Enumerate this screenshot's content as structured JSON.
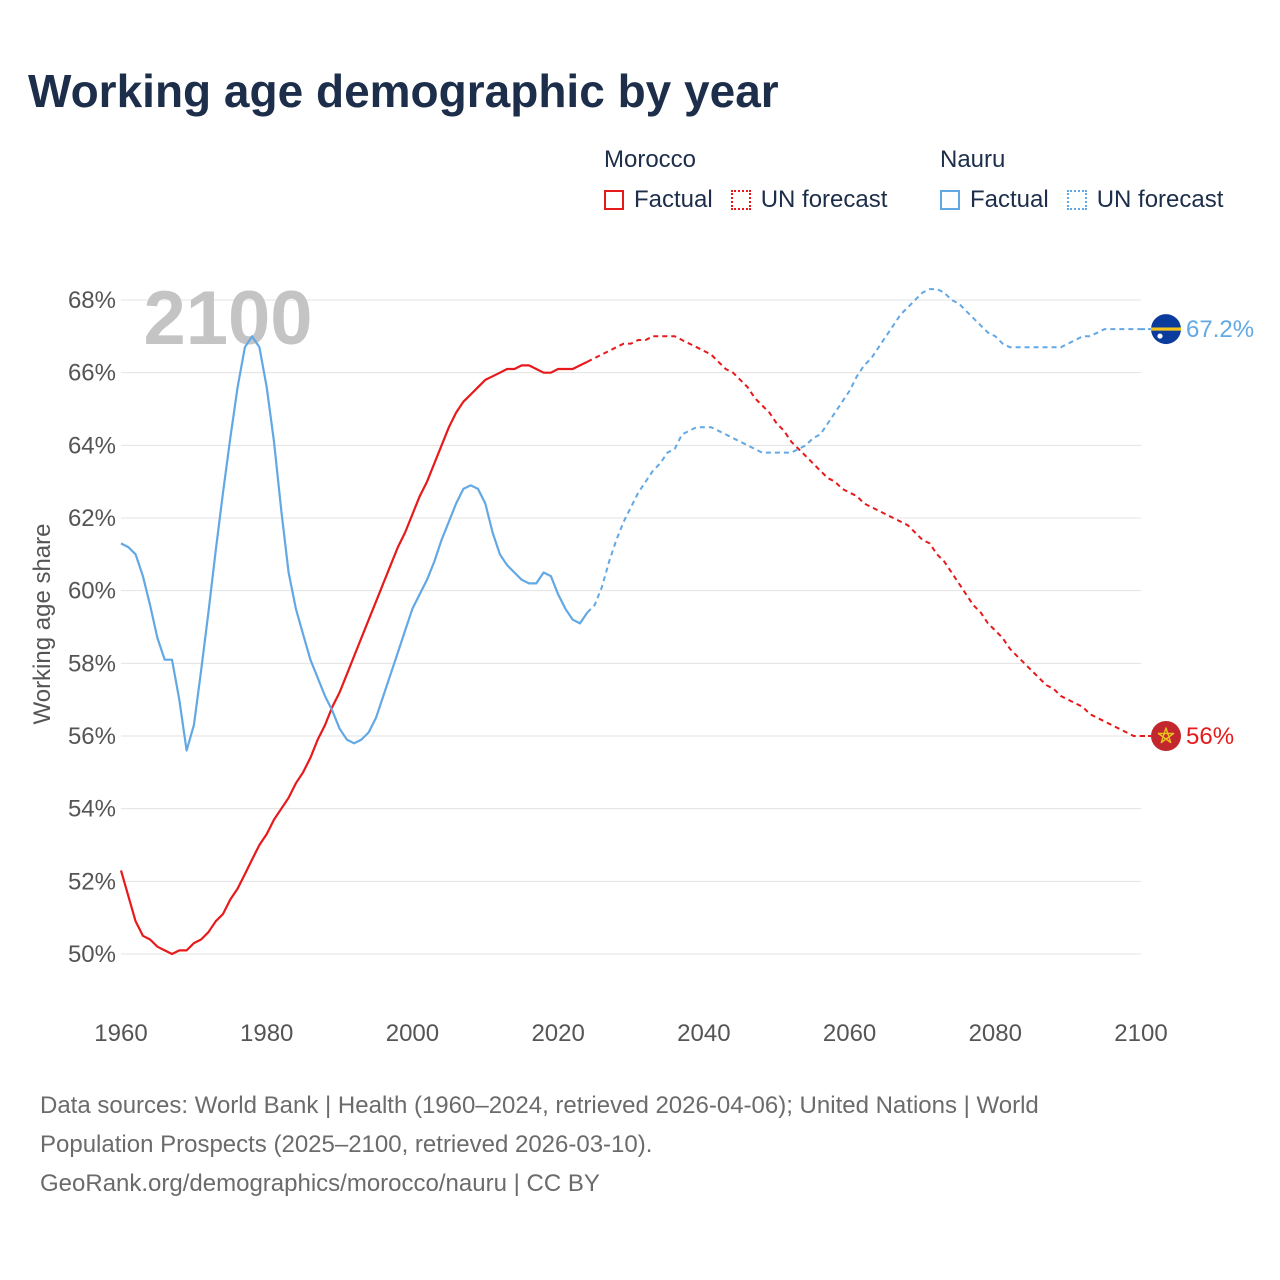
{
  "title": "Working age demographic by year",
  "legend": {
    "groups": [
      {
        "name": "Morocco",
        "factual_label": "Factual",
        "forecast_label": "UN forecast",
        "color": "#e8191b"
      },
      {
        "name": "Nauru",
        "factual_label": "Factual",
        "forecast_label": "UN forecast",
        "color": "#62a8e5"
      }
    ]
  },
  "year_watermark": "2100",
  "footer": {
    "line1": "Data sources: World Bank | Health (1960–2024, retrieved 2026-04-06); United Nations | World",
    "line2": "Population Prospects (2025–2100, retrieved 2026-03-10).",
    "line3": "GeoRank.org/demographics/morocco/nauru | CC BY"
  },
  "chart_data": {
    "type": "line",
    "ylabel": "Working age share",
    "xlim": [
      1960,
      2100
    ],
    "ylim": [
      50,
      68
    ],
    "xticks": [
      1960,
      1980,
      2000,
      2020,
      2040,
      2060,
      2080,
      2100
    ],
    "yticks": [
      50,
      52,
      54,
      56,
      58,
      60,
      62,
      64,
      66,
      68
    ],
    "ytick_suffix": "%",
    "grid": true,
    "factual_end_year": 2024,
    "series": [
      {
        "name": "Morocco",
        "color": "#e8191b",
        "end_label": "56%",
        "points": [
          [
            1960,
            52.3
          ],
          [
            1961,
            51.6
          ],
          [
            1962,
            50.9
          ],
          [
            1963,
            50.5
          ],
          [
            1964,
            50.4
          ],
          [
            1965,
            50.2
          ],
          [
            1966,
            50.1
          ],
          [
            1967,
            50.0
          ],
          [
            1968,
            50.1
          ],
          [
            1969,
            50.1
          ],
          [
            1970,
            50.3
          ],
          [
            1971,
            50.4
          ],
          [
            1972,
            50.6
          ],
          [
            1973,
            50.9
          ],
          [
            1974,
            51.1
          ],
          [
            1975,
            51.5
          ],
          [
            1976,
            51.8
          ],
          [
            1977,
            52.2
          ],
          [
            1978,
            52.6
          ],
          [
            1979,
            53.0
          ],
          [
            1980,
            53.3
          ],
          [
            1981,
            53.7
          ],
          [
            1982,
            54.0
          ],
          [
            1983,
            54.3
          ],
          [
            1984,
            54.7
          ],
          [
            1985,
            55.0
          ],
          [
            1986,
            55.4
          ],
          [
            1987,
            55.9
          ],
          [
            1988,
            56.3
          ],
          [
            1989,
            56.8
          ],
          [
            1990,
            57.2
          ],
          [
            1991,
            57.7
          ],
          [
            1992,
            58.2
          ],
          [
            1993,
            58.7
          ],
          [
            1994,
            59.2
          ],
          [
            1995,
            59.7
          ],
          [
            1996,
            60.2
          ],
          [
            1997,
            60.7
          ],
          [
            1998,
            61.2
          ],
          [
            1999,
            61.6
          ],
          [
            2000,
            62.1
          ],
          [
            2001,
            62.6
          ],
          [
            2002,
            63.0
          ],
          [
            2003,
            63.5
          ],
          [
            2004,
            64.0
          ],
          [
            2005,
            64.5
          ],
          [
            2006,
            64.9
          ],
          [
            2007,
            65.2
          ],
          [
            2008,
            65.4
          ],
          [
            2009,
            65.6
          ],
          [
            2010,
            65.8
          ],
          [
            2011,
            65.9
          ],
          [
            2012,
            66.0
          ],
          [
            2013,
            66.1
          ],
          [
            2014,
            66.1
          ],
          [
            2015,
            66.2
          ],
          [
            2016,
            66.2
          ],
          [
            2017,
            66.1
          ],
          [
            2018,
            66.0
          ],
          [
            2019,
            66.0
          ],
          [
            2020,
            66.1
          ],
          [
            2021,
            66.1
          ],
          [
            2022,
            66.1
          ],
          [
            2023,
            66.2
          ],
          [
            2024,
            66.3
          ],
          [
            2025,
            66.4
          ],
          [
            2026,
            66.5
          ],
          [
            2027,
            66.6
          ],
          [
            2028,
            66.7
          ],
          [
            2029,
            66.8
          ],
          [
            2030,
            66.8
          ],
          [
            2031,
            66.9
          ],
          [
            2032,
            66.9
          ],
          [
            2033,
            67.0
          ],
          [
            2034,
            67.0
          ],
          [
            2035,
            67.0
          ],
          [
            2036,
            67.0
          ],
          [
            2037,
            66.9
          ],
          [
            2038,
            66.8
          ],
          [
            2039,
            66.7
          ],
          [
            2040,
            66.6
          ],
          [
            2041,
            66.5
          ],
          [
            2042,
            66.3
          ],
          [
            2043,
            66.1
          ],
          [
            2044,
            66.0
          ],
          [
            2045,
            65.8
          ],
          [
            2046,
            65.6
          ],
          [
            2047,
            65.3
          ],
          [
            2048,
            65.1
          ],
          [
            2049,
            64.9
          ],
          [
            2050,
            64.6
          ],
          [
            2051,
            64.4
          ],
          [
            2052,
            64.1
          ],
          [
            2053,
            63.9
          ],
          [
            2054,
            63.7
          ],
          [
            2055,
            63.5
          ],
          [
            2056,
            63.3
          ],
          [
            2057,
            63.1
          ],
          [
            2058,
            63.0
          ],
          [
            2059,
            62.8
          ],
          [
            2060,
            62.7
          ],
          [
            2061,
            62.6
          ],
          [
            2062,
            62.4
          ],
          [
            2063,
            62.3
          ],
          [
            2064,
            62.2
          ],
          [
            2065,
            62.1
          ],
          [
            2066,
            62.0
          ],
          [
            2067,
            61.9
          ],
          [
            2068,
            61.8
          ],
          [
            2069,
            61.6
          ],
          [
            2070,
            61.4
          ],
          [
            2071,
            61.3
          ],
          [
            2072,
            61.0
          ],
          [
            2073,
            60.8
          ],
          [
            2074,
            60.5
          ],
          [
            2075,
            60.2
          ],
          [
            2076,
            59.9
          ],
          [
            2077,
            59.6
          ],
          [
            2078,
            59.4
          ],
          [
            2079,
            59.1
          ],
          [
            2080,
            58.9
          ],
          [
            2081,
            58.7
          ],
          [
            2082,
            58.4
          ],
          [
            2083,
            58.2
          ],
          [
            2084,
            58.0
          ],
          [
            2085,
            57.8
          ],
          [
            2086,
            57.6
          ],
          [
            2087,
            57.4
          ],
          [
            2088,
            57.3
          ],
          [
            2089,
            57.1
          ],
          [
            2090,
            57.0
          ],
          [
            2091,
            56.9
          ],
          [
            2092,
            56.8
          ],
          [
            2093,
            56.6
          ],
          [
            2094,
            56.5
          ],
          [
            2095,
            56.4
          ],
          [
            2096,
            56.3
          ],
          [
            2097,
            56.2
          ],
          [
            2098,
            56.1
          ],
          [
            2099,
            56.0
          ],
          [
            2100,
            56.0
          ]
        ]
      },
      {
        "name": "Nauru",
        "color": "#62a8e5",
        "end_label": "67.2%",
        "points": [
          [
            1960,
            61.3
          ],
          [
            1961,
            61.2
          ],
          [
            1962,
            61.0
          ],
          [
            1963,
            60.4
          ],
          [
            1964,
            59.6
          ],
          [
            1965,
            58.7
          ],
          [
            1966,
            58.1
          ],
          [
            1967,
            58.1
          ],
          [
            1968,
            57.0
          ],
          [
            1969,
            55.6
          ],
          [
            1970,
            56.3
          ],
          [
            1971,
            57.8
          ],
          [
            1972,
            59.4
          ],
          [
            1973,
            61.1
          ],
          [
            1974,
            62.7
          ],
          [
            1975,
            64.2
          ],
          [
            1976,
            65.6
          ],
          [
            1977,
            66.7
          ],
          [
            1978,
            67.0
          ],
          [
            1979,
            66.7
          ],
          [
            1980,
            65.6
          ],
          [
            1981,
            64.1
          ],
          [
            1982,
            62.2
          ],
          [
            1983,
            60.5
          ],
          [
            1984,
            59.5
          ],
          [
            1985,
            58.8
          ],
          [
            1986,
            58.1
          ],
          [
            1987,
            57.6
          ],
          [
            1988,
            57.1
          ],
          [
            1989,
            56.7
          ],
          [
            1990,
            56.2
          ],
          [
            1991,
            55.9
          ],
          [
            1992,
            55.8
          ],
          [
            1993,
            55.9
          ],
          [
            1994,
            56.1
          ],
          [
            1995,
            56.5
          ],
          [
            1996,
            57.1
          ],
          [
            1997,
            57.7
          ],
          [
            1998,
            58.3
          ],
          [
            1999,
            58.9
          ],
          [
            2000,
            59.5
          ],
          [
            2001,
            59.9
          ],
          [
            2002,
            60.3
          ],
          [
            2003,
            60.8
          ],
          [
            2004,
            61.4
          ],
          [
            2005,
            61.9
          ],
          [
            2006,
            62.4
          ],
          [
            2007,
            62.8
          ],
          [
            2008,
            62.9
          ],
          [
            2009,
            62.8
          ],
          [
            2010,
            62.4
          ],
          [
            2011,
            61.6
          ],
          [
            2012,
            61.0
          ],
          [
            2013,
            60.7
          ],
          [
            2014,
            60.5
          ],
          [
            2015,
            60.3
          ],
          [
            2016,
            60.2
          ],
          [
            2017,
            60.2
          ],
          [
            2018,
            60.5
          ],
          [
            2019,
            60.4
          ],
          [
            2020,
            59.9
          ],
          [
            2021,
            59.5
          ],
          [
            2022,
            59.2
          ],
          [
            2023,
            59.1
          ],
          [
            2024,
            59.4
          ],
          [
            2025,
            59.6
          ],
          [
            2026,
            60.1
          ],
          [
            2027,
            60.8
          ],
          [
            2028,
            61.4
          ],
          [
            2029,
            61.9
          ],
          [
            2030,
            62.3
          ],
          [
            2031,
            62.7
          ],
          [
            2032,
            63.0
          ],
          [
            2033,
            63.3
          ],
          [
            2034,
            63.5
          ],
          [
            2035,
            63.8
          ],
          [
            2036,
            63.9
          ],
          [
            2037,
            64.3
          ],
          [
            2038,
            64.4
          ],
          [
            2039,
            64.5
          ],
          [
            2040,
            64.5
          ],
          [
            2041,
            64.5
          ],
          [
            2042,
            64.4
          ],
          [
            2043,
            64.3
          ],
          [
            2044,
            64.2
          ],
          [
            2045,
            64.1
          ],
          [
            2046,
            64.0
          ],
          [
            2047,
            63.9
          ],
          [
            2048,
            63.8
          ],
          [
            2049,
            63.8
          ],
          [
            2050,
            63.8
          ],
          [
            2051,
            63.8
          ],
          [
            2052,
            63.8
          ],
          [
            2053,
            63.9
          ],
          [
            2054,
            64.0
          ],
          [
            2055,
            64.2
          ],
          [
            2056,
            64.3
          ],
          [
            2057,
            64.6
          ],
          [
            2058,
            64.9
          ],
          [
            2059,
            65.2
          ],
          [
            2060,
            65.5
          ],
          [
            2061,
            65.9
          ],
          [
            2062,
            66.2
          ],
          [
            2063,
            66.4
          ],
          [
            2064,
            66.7
          ],
          [
            2065,
            67.0
          ],
          [
            2066,
            67.3
          ],
          [
            2067,
            67.6
          ],
          [
            2068,
            67.8
          ],
          [
            2069,
            68.0
          ],
          [
            2070,
            68.2
          ],
          [
            2071,
            68.3
          ],
          [
            2072,
            68.3
          ],
          [
            2073,
            68.2
          ],
          [
            2074,
            68.0
          ],
          [
            2075,
            67.9
          ],
          [
            2076,
            67.7
          ],
          [
            2077,
            67.5
          ],
          [
            2078,
            67.3
          ],
          [
            2079,
            67.1
          ],
          [
            2080,
            67.0
          ],
          [
            2081,
            66.8
          ],
          [
            2082,
            66.7
          ],
          [
            2083,
            66.7
          ],
          [
            2084,
            66.7
          ],
          [
            2085,
            66.7
          ],
          [
            2086,
            66.7
          ],
          [
            2087,
            66.7
          ],
          [
            2088,
            66.7
          ],
          [
            2089,
            66.7
          ],
          [
            2090,
            66.8
          ],
          [
            2091,
            66.9
          ],
          [
            2092,
            67.0
          ],
          [
            2093,
            67.0
          ],
          [
            2094,
            67.1
          ],
          [
            2095,
            67.2
          ],
          [
            2096,
            67.2
          ],
          [
            2097,
            67.2
          ],
          [
            2098,
            67.2
          ],
          [
            2099,
            67.2
          ],
          [
            2100,
            67.2
          ]
        ]
      }
    ]
  }
}
